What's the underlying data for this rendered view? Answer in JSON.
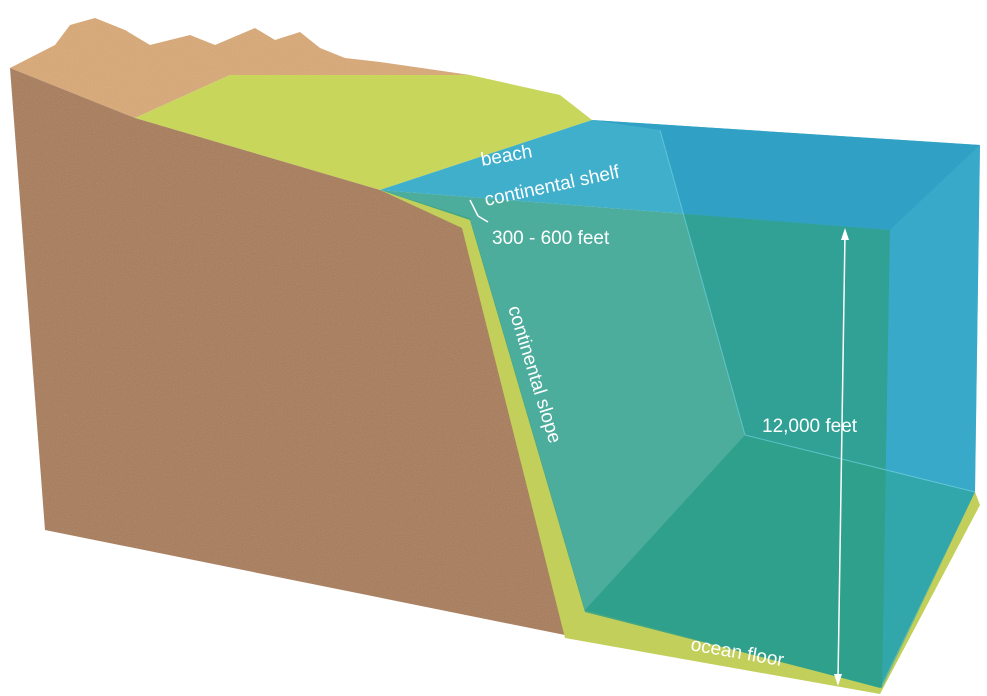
{
  "labels": {
    "beach": "beach",
    "shelf": "continental shelf",
    "shelf_depth": "300 - 600 feet",
    "slope": "continental slope",
    "ocean_depth": "12,000 feet",
    "floor": "ocean floor"
  }
}
